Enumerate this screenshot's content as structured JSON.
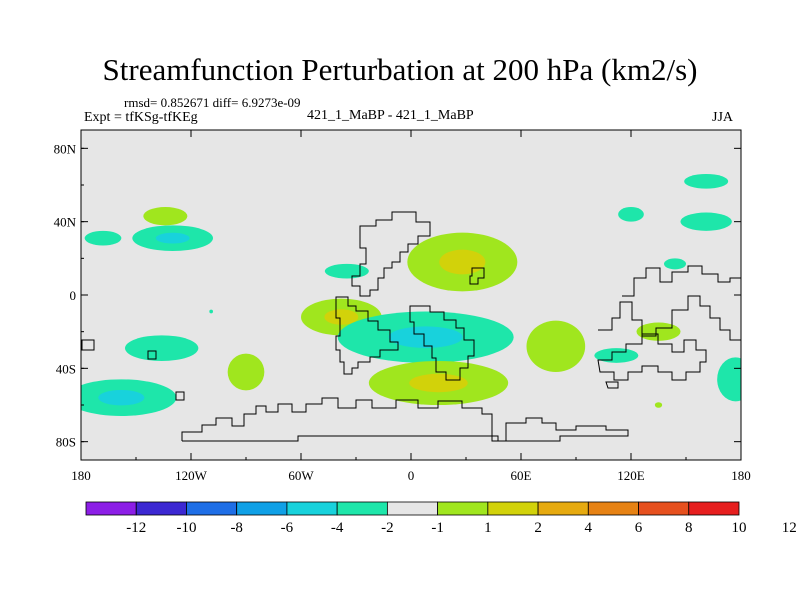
{
  "chart_data": {
    "type": "heatmap",
    "title": "Streamfunction Perturbation at 200 hPa (km2/s)",
    "stats": "rmsd= 0.852671 diff= 6.9273e-09",
    "left_label": "Expt = tfKSg-tfKEg",
    "center_label": "421_1_MaBP - 421_1_MaBP",
    "right_label": "JJA",
    "x_axis": {
      "min": -180,
      "max": 180,
      "ticks": [
        -180,
        -120,
        -60,
        0,
        60,
        120,
        180
      ],
      "tick_labels": [
        "180",
        "120W",
        "60W",
        "0",
        "60E",
        "120E",
        "180"
      ]
    },
    "y_axis": {
      "min": -90,
      "max": 90,
      "ticks": [
        80,
        40,
        0,
        -40,
        -80
      ],
      "tick_labels": [
        "80N",
        "40N",
        "0",
        "40S",
        "80S"
      ]
    },
    "colorbar": {
      "colors": [
        "#8c1ee6",
        "#3c28d2",
        "#1e6ee6",
        "#10a0e6",
        "#18d2dc",
        "#1ee6aa",
        "#e6e6e6",
        "#a0e61e",
        "#d2d20a",
        "#e6aa10",
        "#e68214",
        "#e6501e",
        "#e61e1e"
      ],
      "labels": [
        "-12",
        "-10",
        "-8",
        "-6",
        "-4",
        "-2",
        "-1",
        "1",
        "2",
        "4",
        "6",
        "8",
        "10",
        "12"
      ]
    },
    "anomalies": [
      {
        "lon": -130,
        "lat": 31,
        "rx": 22,
        "ry": 7,
        "level": 5,
        "core": 4
      },
      {
        "lon": -168,
        "lat": 31,
        "rx": 10,
        "ry": 4,
        "level": 5
      },
      {
        "lon": -136,
        "lat": -29,
        "rx": 20,
        "ry": 7,
        "level": 5
      },
      {
        "lon": -158,
        "lat": -56,
        "rx": 30,
        "ry": 10,
        "level": 5,
        "core": 4
      },
      {
        "lon": -90,
        "lat": -42,
        "rx": 10,
        "ry": 10,
        "level": 7
      },
      {
        "lon": -38,
        "lat": -12,
        "rx": 22,
        "ry": 10,
        "level": 7,
        "core": 8
      },
      {
        "lon": -35,
        "lat": 13,
        "rx": 12,
        "ry": 4,
        "level": 5
      },
      {
        "lon": 28,
        "lat": 18,
        "rx": 30,
        "ry": 16,
        "level": 7,
        "core": 8
      },
      {
        "lon": 8,
        "lat": -23,
        "rx": 48,
        "ry": 14,
        "level": 5,
        "core": 4
      },
      {
        "lon": 15,
        "lat": -48,
        "rx": 38,
        "ry": 12,
        "level": 7,
        "core": 8
      },
      {
        "lon": 79,
        "lat": -28,
        "rx": 16,
        "ry": 14,
        "level": 7
      },
      {
        "lon": -134,
        "lat": 43,
        "rx": 12,
        "ry": 5,
        "level": 7
      },
      {
        "lon": 161,
        "lat": 62,
        "rx": 12,
        "ry": 4,
        "level": 5
      },
      {
        "lon": 120,
        "lat": 44,
        "rx": 7,
        "ry": 4,
        "level": 5
      },
      {
        "lon": 161,
        "lat": 40,
        "rx": 14,
        "ry": 5,
        "level": 5
      },
      {
        "lon": 144,
        "lat": 17,
        "rx": 6,
        "ry": 3,
        "level": 5
      },
      {
        "lon": 135,
        "lat": -20,
        "rx": 12,
        "ry": 5,
        "level": 7
      },
      {
        "lon": 112,
        "lat": -33,
        "rx": 12,
        "ry": 4,
        "level": 5
      },
      {
        "lon": 177,
        "lat": -46,
        "rx": 10,
        "ry": 12,
        "level": 5
      },
      {
        "lon": 135,
        "lat": -60,
        "rx": 2,
        "ry": 1.5,
        "level": 7
      },
      {
        "lon": -109,
        "lat": -9,
        "rx": 1,
        "ry": 1,
        "level": 5
      }
    ]
  }
}
